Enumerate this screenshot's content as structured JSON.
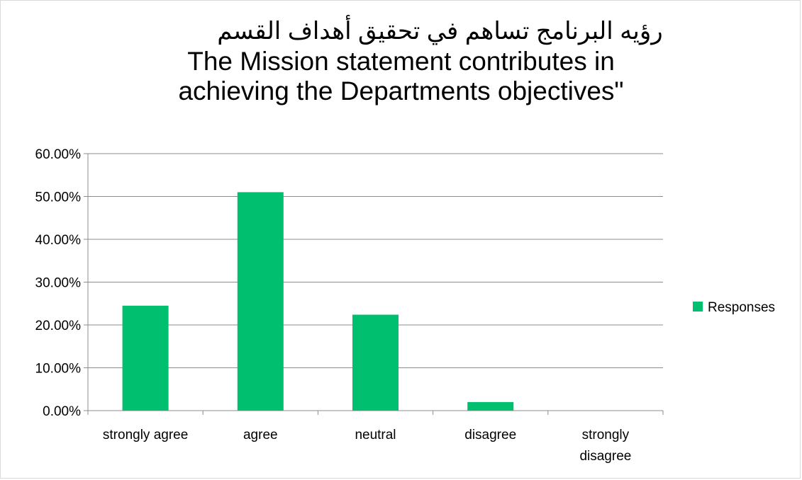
{
  "chart_data": {
    "type": "bar",
    "title_arabic": "رؤيه البرنامج  تساهم في تحقيق أهداف القسم",
    "title_line1": "The Mission statement contributes in",
    "title_line2": "achieving the Departments objectives\"",
    "categories": [
      "strongly agree",
      "agree",
      "neutral",
      "disagree",
      "strongly disagree"
    ],
    "series": [
      {
        "name": "Responses",
        "color": "#00bf6f",
        "values": [
          0.245,
          0.51,
          0.224,
          0.02,
          0.0
        ]
      }
    ],
    "ylim": [
      0,
      0.6
    ],
    "yticks": [
      "0.00%",
      "10.00%",
      "20.00%",
      "30.00%",
      "40.00%",
      "50.00%",
      "60.00%"
    ],
    "grid": true,
    "legend_position": "right"
  }
}
